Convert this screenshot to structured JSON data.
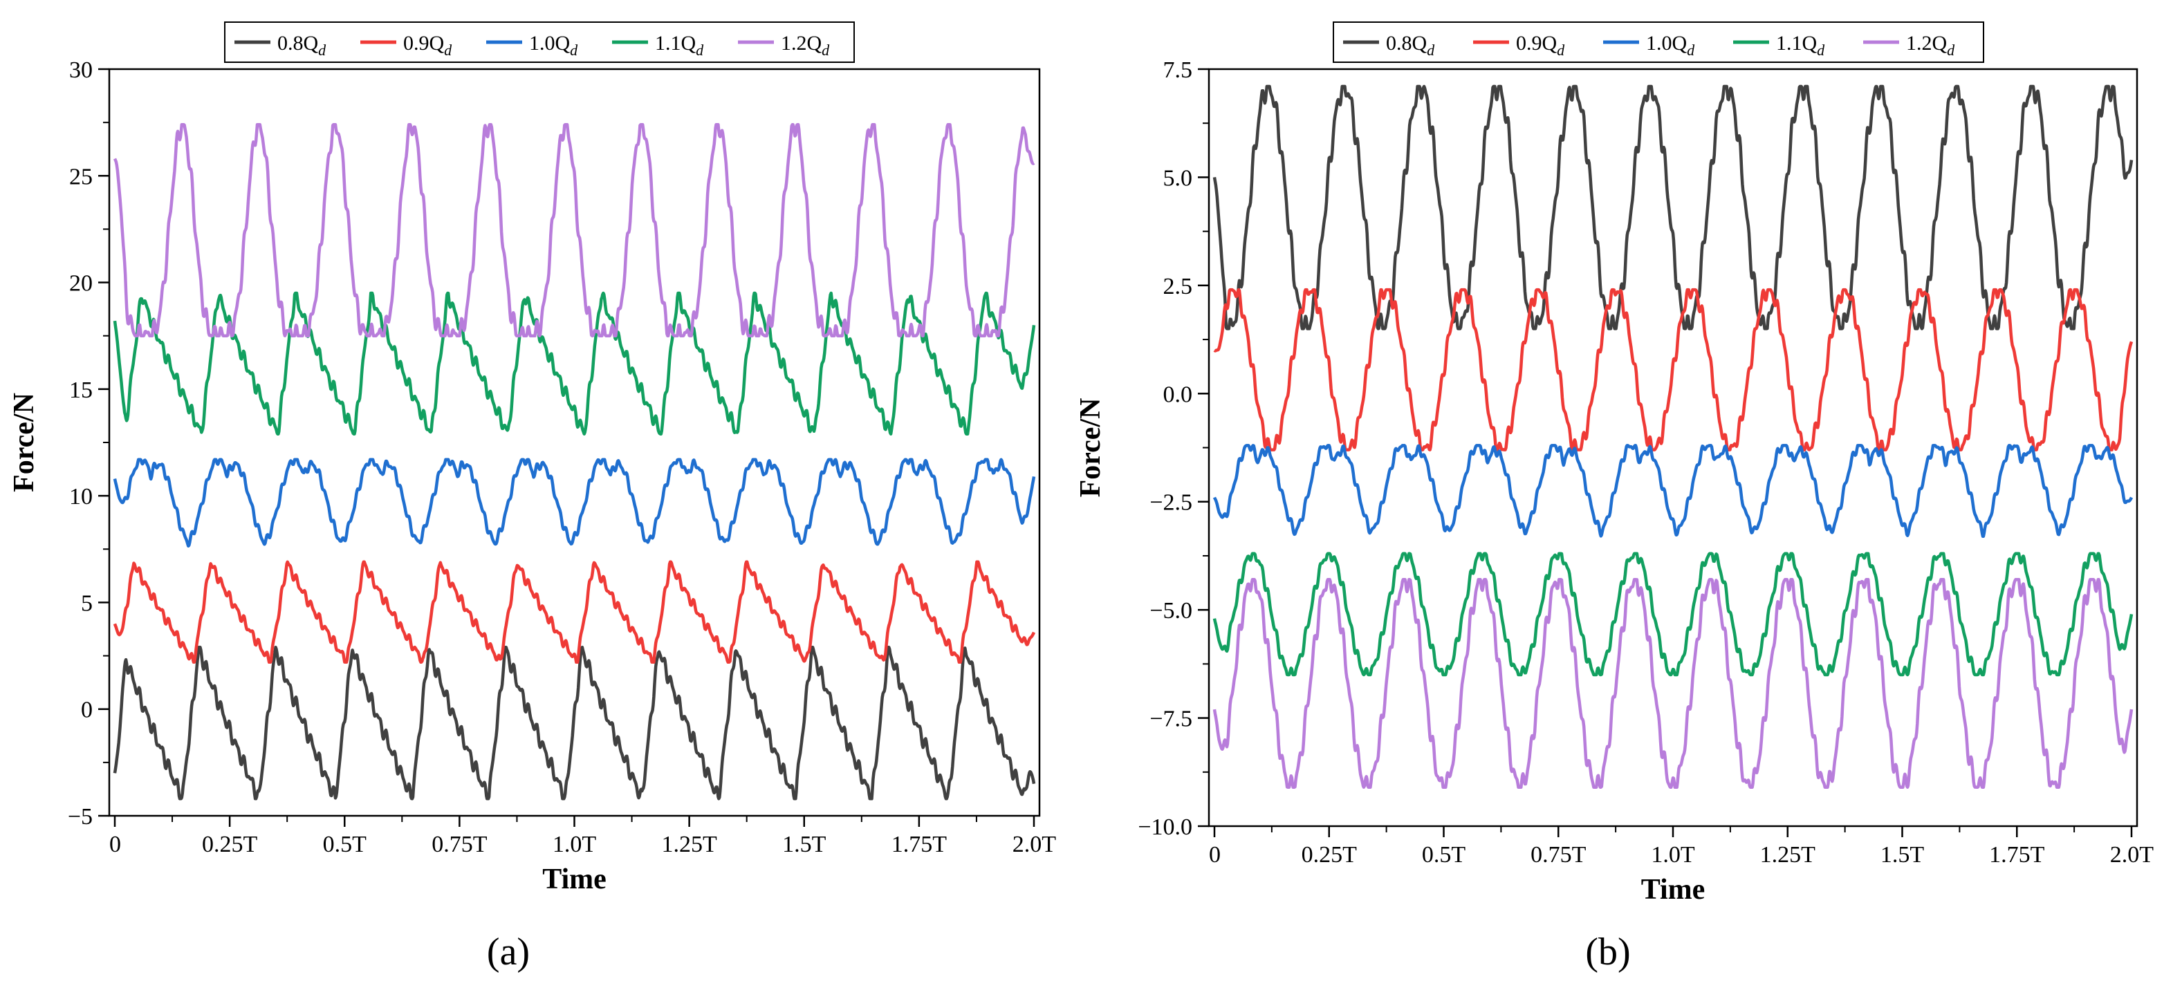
{
  "chart_data": [
    {
      "type": "line",
      "panel_label": "(a)",
      "xlabel": "Time",
      "ylabel": "Force/N",
      "xlim": [
        0,
        2.0
      ],
      "ylim": [
        -5,
        30
      ],
      "grid": false,
      "legend_position": "top",
      "x_ticks": [
        0,
        0.25,
        0.5,
        0.75,
        1.0,
        1.25,
        1.5,
        1.75,
        2.0
      ],
      "x_tick_labels": [
        "0",
        "0.25T",
        "0.5T",
        "0.75T",
        "1.0T",
        "1.25T",
        "1.5T",
        "1.75T",
        "2.0T"
      ],
      "y_ticks": [
        -5,
        0,
        5,
        10,
        15,
        20,
        25,
        30
      ],
      "y_tick_labels": [
        "−5",
        "0",
        "5",
        "10",
        "15",
        "20",
        "25",
        "30"
      ],
      "period": 0.1667,
      "series": [
        {
          "name": "0.8Q",
          "subscript": "d",
          "color": "#404040",
          "min": -4.2,
          "max": 2.9,
          "peak_phase": 0.1,
          "shape": "saw_fall",
          "start": -3.0,
          "end": -3.5
        },
        {
          "name": "0.9Q",
          "subscript": "d",
          "color": "#ef3a36",
          "min": 2.2,
          "max": 6.9,
          "peak_phase": 0.25,
          "shape": "saw_fall",
          "start": 4.0,
          "end": 3.6
        },
        {
          "name": "1.0Q",
          "subscript": "d",
          "color": "#1f6fd0",
          "min": 7.6,
          "max": 11.7,
          "peak_phase": 0.35,
          "shape": "double",
          "start": 10.8,
          "end": 10.9
        },
        {
          "name": "1.1Q",
          "subscript": "d",
          "color": "#12a060",
          "min": 12.9,
          "max": 19.5,
          "peak_phase": 0.35,
          "shape": "saw_fall",
          "start": 18.2,
          "end": 18.0
        },
        {
          "name": "1.2Q",
          "subscript": "d",
          "color": "#b87ddb",
          "min": 17.5,
          "max": 27.4,
          "peak_phase": 0.88,
          "shape": "peak",
          "start": 25.8,
          "end": 25.6
        }
      ]
    },
    {
      "type": "line",
      "panel_label": "(b)",
      "xlabel": "Time",
      "ylabel": "Force/N",
      "xlim": [
        0,
        2.0
      ],
      "ylim": [
        -10.0,
        7.5
      ],
      "grid": false,
      "legend_position": "top",
      "x_ticks": [
        0,
        0.25,
        0.5,
        0.75,
        1.0,
        1.25,
        1.5,
        1.75,
        2.0
      ],
      "x_tick_labels": [
        "0",
        "0.25T",
        "0.5T",
        "0.75T",
        "1.0T",
        "1.25T",
        "1.5T",
        "1.75T",
        "2.0T"
      ],
      "y_ticks": [
        -10.0,
        -7.5,
        -5.0,
        -2.5,
        0.0,
        2.5,
        5.0,
        7.5
      ],
      "y_tick_labels": [
        "−10.0",
        "−7.5",
        "−5.0",
        "−2.5",
        "0.0",
        "2.5",
        "5.0",
        "7.5"
      ],
      "period": 0.1667,
      "series": [
        {
          "name": "0.8Q",
          "subscript": "d",
          "color": "#404040",
          "min": 1.5,
          "max": 7.1,
          "peak_phase": 0.7,
          "shape": "sine",
          "start": 5.0,
          "end": 5.4
        },
        {
          "name": "0.9Q",
          "subscript": "d",
          "color": "#ef3a36",
          "min": -1.3,
          "max": 2.4,
          "peak_phase": 0.25,
          "shape": "sine",
          "start": 1.0,
          "end": 1.2
        },
        {
          "name": "1.0Q",
          "subscript": "d",
          "color": "#1f6fd0",
          "min": -3.3,
          "max": -1.2,
          "peak_phase": 0.45,
          "shape": "double",
          "start": -2.4,
          "end": -2.4
        },
        {
          "name": "1.1Q",
          "subscript": "d",
          "color": "#12a060",
          "min": -6.5,
          "max": -3.7,
          "peak_phase": 0.5,
          "shape": "sine",
          "start": -5.2,
          "end": -5.1
        },
        {
          "name": "1.2Q",
          "subscript": "d",
          "color": "#b87ddb",
          "min": -9.1,
          "max": -4.3,
          "peak_phase": 0.5,
          "shape": "sine",
          "start": -7.3,
          "end": -7.3
        }
      ]
    }
  ]
}
